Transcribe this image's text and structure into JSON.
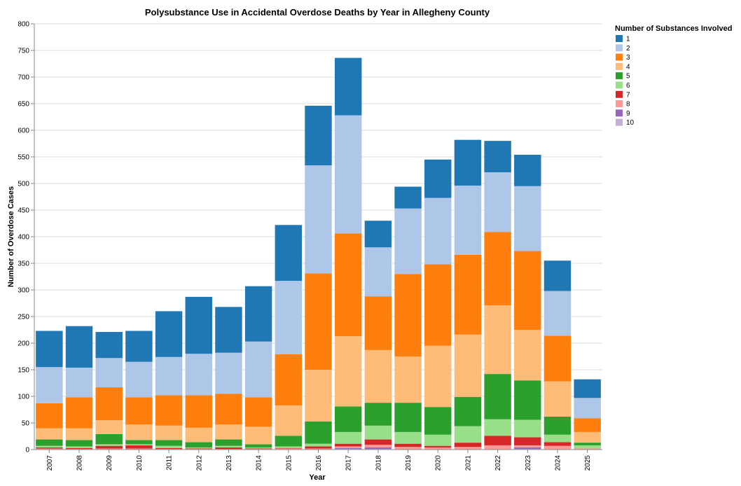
{
  "chart_data": {
    "type": "bar",
    "stacked": true,
    "title": "Polysubstance Use in Accidental Overdose Deaths by Year in Allegheny County",
    "xlabel": "Year",
    "ylabel": "Number of Overdose Cases",
    "ylim": [
      0,
      800
    ],
    "yticks": [
      0,
      50,
      100,
      150,
      200,
      250,
      300,
      350,
      400,
      450,
      500,
      550,
      600,
      650,
      700,
      750,
      800
    ],
    "grid": true,
    "legend": {
      "title": "Number of Substances Involved",
      "placement": "top-right"
    },
    "categories": [
      "2007",
      "2008",
      "2009",
      "2010",
      "2011",
      "2012",
      "2013",
      "2014",
      "2015",
      "2016",
      "2017",
      "2018",
      "2019",
      "2020",
      "2021",
      "2022",
      "2023",
      "2024",
      "2025"
    ],
    "series": [
      {
        "name": "10",
        "color": "#c5b0d5",
        "values": [
          0,
          0,
          0,
          0,
          0,
          0,
          0,
          0,
          0,
          0,
          1,
          1,
          0,
          0,
          0,
          0,
          1,
          0,
          0
        ]
      },
      {
        "name": "9",
        "color": "#9467bd",
        "values": [
          0,
          0,
          0,
          0,
          0,
          0,
          0,
          0,
          0,
          0,
          2,
          3,
          0,
          0,
          0,
          0,
          3,
          0,
          0
        ]
      },
      {
        "name": "8",
        "color": "#ff9896",
        "values": [
          2,
          1,
          2,
          2,
          1,
          1,
          1,
          1,
          2,
          2,
          3,
          5,
          5,
          4,
          5,
          8,
          4,
          7,
          2
        ]
      },
      {
        "name": "7",
        "color": "#d62728",
        "values": [
          2,
          2,
          5,
          6,
          2,
          1,
          3,
          1,
          1,
          4,
          5,
          10,
          6,
          3,
          8,
          18,
          15,
          7,
          0
        ]
      },
      {
        "name": "6",
        "color": "#98df8a",
        "values": [
          3,
          3,
          3,
          2,
          4,
          2,
          3,
          2,
          3,
          5,
          22,
          26,
          22,
          21,
          31,
          31,
          33,
          14,
          6
        ]
      },
      {
        "name": "5",
        "color": "#2ca02c",
        "values": [
          12,
          12,
          19,
          8,
          11,
          10,
          12,
          6,
          20,
          42,
          48,
          43,
          55,
          52,
          55,
          85,
          74,
          34,
          5
        ]
      },
      {
        "name": "4",
        "color": "#ffbb78",
        "values": [
          21,
          22,
          26,
          29,
          27,
          27,
          28,
          33,
          57,
          97,
          132,
          99,
          87,
          115,
          117,
          129,
          95,
          66,
          20
        ]
      },
      {
        "name": "3",
        "color": "#ff7f0e",
        "values": [
          47,
          58,
          62,
          51,
          57,
          61,
          58,
          55,
          96,
          181,
          193,
          101,
          155,
          153,
          150,
          138,
          148,
          86,
          26
        ]
      },
      {
        "name": "2",
        "color": "#aec7e8",
        "values": [
          68,
          56,
          55,
          67,
          72,
          78,
          77,
          105,
          138,
          203,
          222,
          92,
          123,
          125,
          130,
          112,
          122,
          84,
          38
        ]
      },
      {
        "name": "1",
        "color": "#1f77b4",
        "values": [
          68,
          78,
          49,
          58,
          86,
          107,
          86,
          104,
          105,
          112,
          108,
          50,
          41,
          72,
          86,
          59,
          59,
          57,
          35
        ]
      }
    ]
  }
}
